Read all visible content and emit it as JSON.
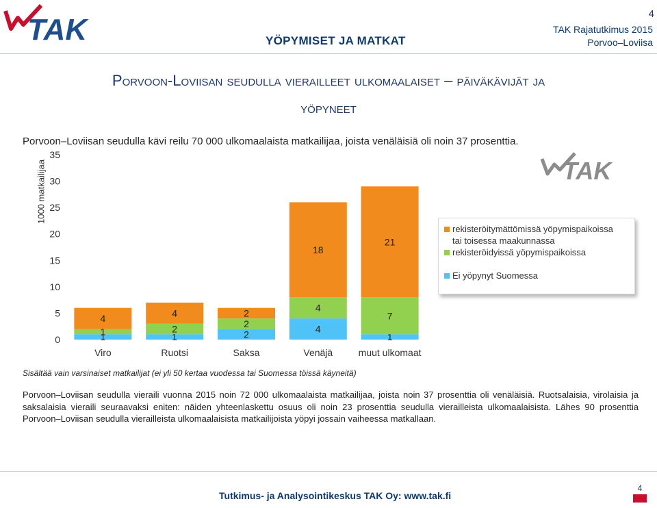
{
  "header": {
    "page_number": "4",
    "section": "YÖPYMISET JA MATKAT",
    "report_line1": "TAK Rajatutkimus 2015",
    "report_line2": "Porvoo–Loviisa",
    "logo_text": "TAK"
  },
  "title": {
    "line1": "Porvoon-Loviisan seudulla vierailleet ulkomaalaiset – päiväkävijät ja",
    "line2": "yöpyneet"
  },
  "intro": "Porvoon–Loviisan seudulla kävi reilu 70 000 ulkomaalaista matkailijaa, joista venäläisiä oli noin 37 prosenttia.",
  "chart_data": {
    "type": "bar",
    "stacked": true,
    "ylabel": "1000 matkailijaa",
    "ylim": [
      0,
      35
    ],
    "yticks": [
      0,
      5,
      10,
      15,
      20,
      25,
      30,
      35
    ],
    "categories": [
      "Viro",
      "Ruotsi",
      "Saksa",
      "Venäjä",
      "muut ulkomaat"
    ],
    "series": [
      {
        "name": "Ei yöpynyt Suomessa",
        "color": "#4fc3f7",
        "values": [
          1,
          1,
          2,
          4,
          1
        ]
      },
      {
        "name": "rekisteröidyissä yöpymispaikoissa",
        "color": "#92d050",
        "values": [
          1,
          2,
          2,
          4,
          7
        ]
      },
      {
        "name": "rekisteröitymättömissä yöpymispaikoissa tai toisessa maakunnassa",
        "color": "#f28b1e",
        "values": [
          4,
          4,
          2,
          18,
          21
        ]
      }
    ],
    "legend_position": "right",
    "grid": false
  },
  "legend": [
    {
      "line1": "rekisteröitymättömissä yöpymispaikoissa",
      "line2": "tai toisessa maakunnassa",
      "color": "#f28b1e"
    },
    {
      "line1": "rekisteröidyissä yöpymispaikoissa",
      "line2": "",
      "color": "#92d050"
    },
    {
      "line1": "Ei yöpynyt Suomessa",
      "line2": "",
      "color": "#4fc3f7"
    }
  ],
  "watermark_text": "TAK",
  "note": "Sisältää vain varsinaiset matkailijat (ei yli 50 kertaa vuodessa tai Suomessa töissä käyneitä)",
  "body_text": "Porvoon–Loviisan seudulla vieraili vuonna 2015 noin 72 000 ulkomaalaista matkailijaa, joista noin 37 prosenttia oli venäläisiä. Ruotsalaisia, virolaisia ja saksalaisia vieraili seuraavaksi eniten: näiden yhteenlaskettu osuus oli noin 23 prosenttia seudulla vierailleista ulkomaalaisista. Lähes 90 prosenttia Porvoon–Loviisan seudulla vierailleista ulkomaalaisista matkailijoista yöpyi jossain vaiheessa matkallaan.",
  "footer": {
    "text": "Tutkimus- ja Analysointikeskus TAK Oy: www.tak.fi",
    "corner_number": "4"
  },
  "colors": {
    "navy": "#0e3a6e",
    "orange": "#f28b1e",
    "green": "#92d050",
    "blue": "#4fc3f7",
    "logo_red": "#c8102e"
  }
}
